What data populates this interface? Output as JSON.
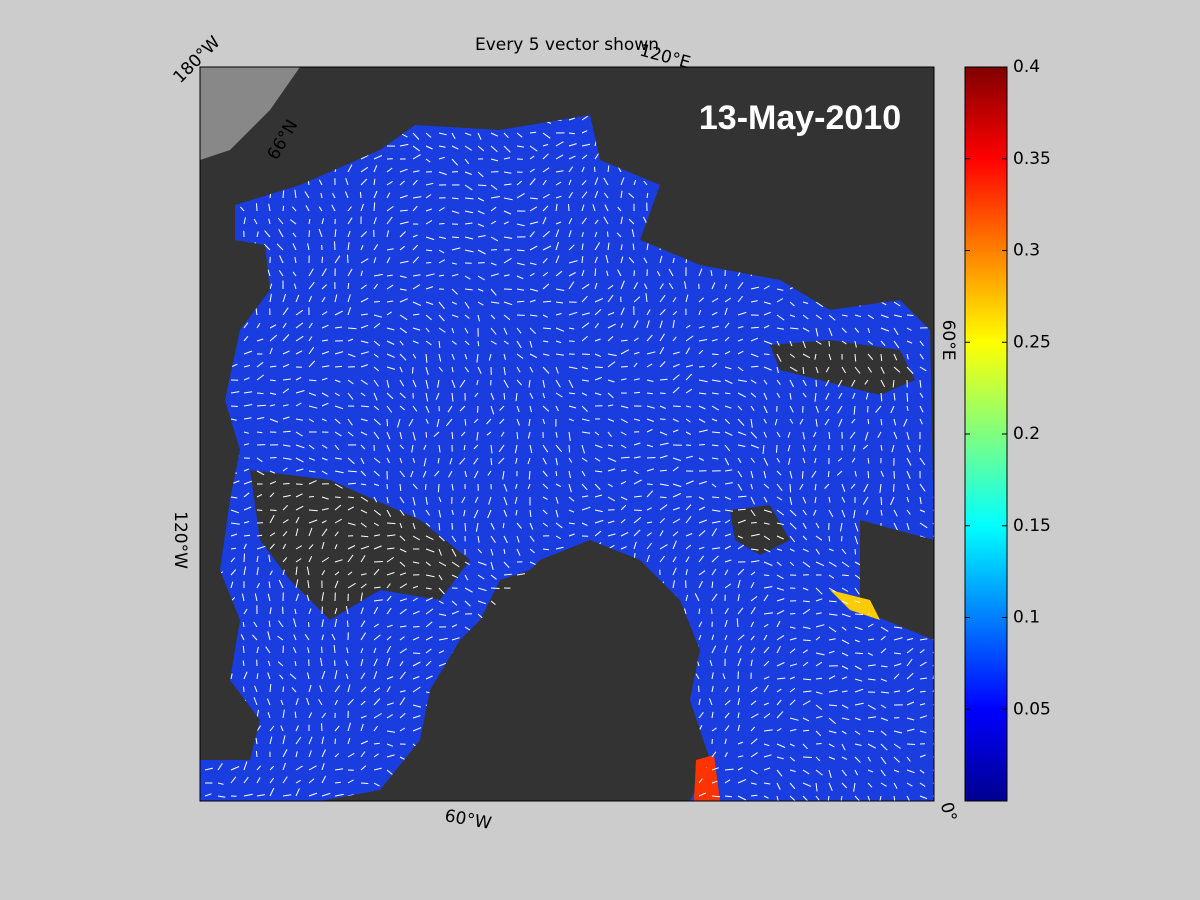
{
  "title": "Every 5 vector shown",
  "date_label": "13-May-2010",
  "graticule_labels": [
    "180°W",
    "120°E",
    "66°N",
    "60°E",
    "0°",
    "60°W",
    "120°W"
  ],
  "colorbar": {
    "colormap": "jet",
    "lim": [
      0,
      0.4
    ],
    "ticks": [
      0.05,
      0.1,
      0.15,
      0.2,
      0.25,
      0.3,
      0.35,
      0.4
    ]
  }
}
